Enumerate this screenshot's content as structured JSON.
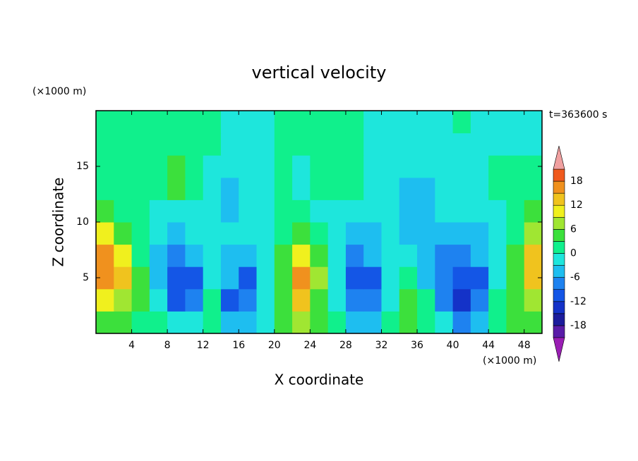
{
  "chart_data": {
    "type": "contour",
    "title": "vertical velocity",
    "y_unit": "(×1000 m)",
    "x_unit": "(×1000 m)",
    "time_label": "t=363600 s",
    "xlabel": "X coordinate",
    "ylabel": "Z coordinate",
    "xlim": [
      0,
      50
    ],
    "ylim": [
      0,
      20
    ],
    "xticks": [
      4,
      8,
      12,
      16,
      20,
      24,
      28,
      32,
      36,
      40,
      44,
      48
    ],
    "yticks": [
      5,
      10,
      15
    ],
    "x": [
      1,
      3,
      5,
      7,
      9,
      11,
      13,
      15,
      17,
      19,
      21,
      23,
      25,
      27,
      29,
      31,
      33,
      35,
      37,
      39,
      41,
      43,
      45,
      47,
      49
    ],
    "y": [
      1,
      3,
      5,
      7,
      9,
      11,
      13,
      15,
      17,
      19
    ],
    "values": [
      [
        4,
        4,
        1,
        1,
        -1,
        -1,
        1,
        -4,
        -4,
        -1,
        4,
        7,
        4,
        1,
        -4,
        -4,
        1,
        4,
        1,
        -1,
        -7,
        -4,
        1,
        4,
        4
      ],
      [
        10,
        7,
        4,
        -1,
        -10,
        -7,
        1,
        -10,
        -7,
        -1,
        4,
        13,
        4,
        -1,
        -7,
        -7,
        -1,
        4,
        1,
        -7,
        -13,
        -7,
        1,
        4,
        7
      ],
      [
        16,
        13,
        4,
        -4,
        -10,
        -10,
        -1,
        -4,
        -10,
        -1,
        4,
        16,
        7,
        -1,
        -10,
        -10,
        -1,
        1,
        -4,
        -7,
        -10,
        -10,
        -1,
        4,
        13
      ],
      [
        16,
        10,
        1,
        -4,
        -7,
        -4,
        -1,
        -4,
        -4,
        -1,
        4,
        10,
        4,
        -1,
        -7,
        -4,
        -1,
        -1,
        -4,
        -7,
        -7,
        -4,
        -1,
        4,
        13
      ],
      [
        10,
        4,
        1,
        -1,
        -4,
        -1,
        -1,
        -1,
        -1,
        -1,
        1,
        4,
        1,
        -1,
        -4,
        -4,
        -1,
        -4,
        -4,
        -4,
        -4,
        -4,
        -1,
        1,
        7
      ],
      [
        4,
        1,
        1,
        -1,
        -1,
        -1,
        -1,
        -4,
        -1,
        -1,
        1,
        1,
        -1,
        -1,
        -1,
        -1,
        -1,
        -4,
        -4,
        -1,
        -1,
        -1,
        -1,
        1,
        4
      ],
      [
        1,
        1,
        1,
        1,
        4,
        1,
        -1,
        -4,
        -1,
        -1,
        1,
        -1,
        1,
        1,
        1,
        -1,
        -1,
        -4,
        -4,
        -1,
        -1,
        -1,
        1,
        1,
        1
      ],
      [
        1,
        1,
        1,
        1,
        4,
        1,
        -1,
        -1,
        -1,
        -1,
        1,
        -1,
        1,
        1,
        1,
        -1,
        -1,
        -1,
        -1,
        -1,
        -1,
        -1,
        1,
        1,
        1
      ],
      [
        1,
        1,
        1,
        1,
        1,
        1,
        1,
        -1,
        -1,
        -1,
        1,
        1,
        1,
        1,
        1,
        -1,
        -1,
        -1,
        -1,
        -1,
        -1,
        -1,
        -1,
        -1,
        -1
      ],
      [
        1,
        1,
        1,
        1,
        1,
        1,
        1,
        -1,
        -1,
        -1,
        1,
        1,
        1,
        1,
        1,
        -1,
        -1,
        -1,
        -1,
        -1,
        1,
        -1,
        -1,
        -1,
        -1
      ]
    ],
    "levels": [
      -21,
      -18,
      -15,
      -12,
      -9,
      -6,
      -3,
      0,
      3,
      6,
      9,
      12,
      15,
      18,
      21
    ],
    "colors": [
      "#5a1ca8",
      "#1c1c9c",
      "#1432c8",
      "#1456e6",
      "#1e82f0",
      "#1ebef0",
      "#1ee6dc",
      "#10f08c",
      "#3ce03c",
      "#a0e632",
      "#f0f01e",
      "#f0c31e",
      "#f0911e",
      "#f05a1e"
    ],
    "under_color": "#9a1eb4",
    "over_color": "#f0a0a0",
    "colorbar_ticks": [
      -18,
      -12,
      -6,
      0,
      6,
      12,
      18
    ]
  }
}
